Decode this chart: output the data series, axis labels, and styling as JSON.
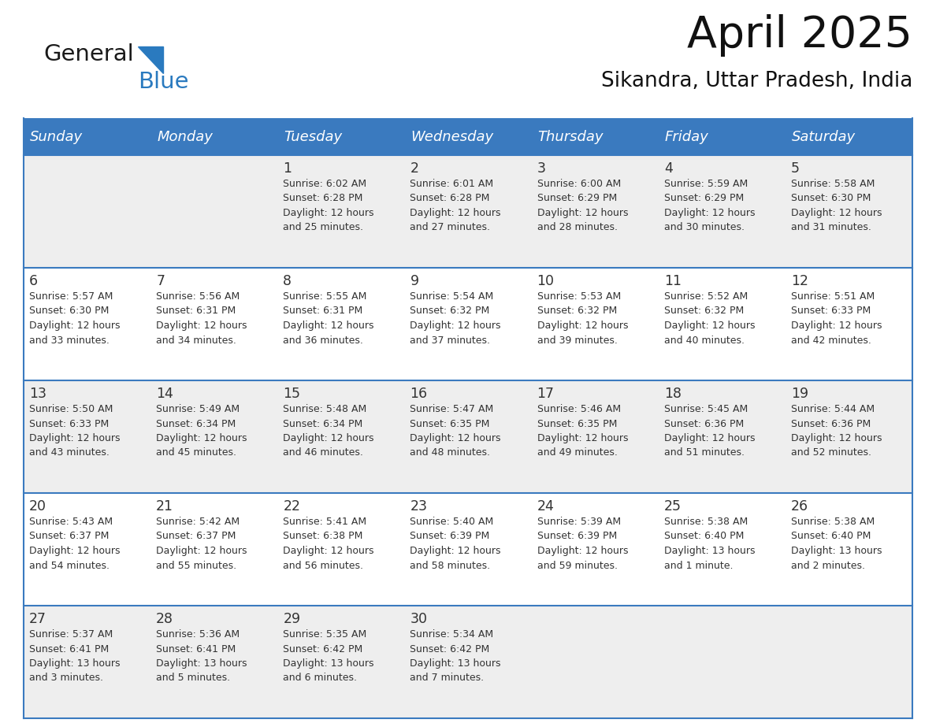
{
  "title": "April 2025",
  "subtitle": "Sikandra, Uttar Pradesh, India",
  "header_bg": "#3a7abf",
  "header_text": "#ffffff",
  "row_bg_odd": "#eeeeee",
  "row_bg_even": "#ffffff",
  "cell_text": "#333333",
  "border_color": "#3a7abf",
  "days_of_week": [
    "Sunday",
    "Monday",
    "Tuesday",
    "Wednesday",
    "Thursday",
    "Friday",
    "Saturday"
  ],
  "weeks": [
    [
      {
        "day": "",
        "info": ""
      },
      {
        "day": "",
        "info": ""
      },
      {
        "day": "1",
        "info": "Sunrise: 6:02 AM\nSunset: 6:28 PM\nDaylight: 12 hours\nand 25 minutes."
      },
      {
        "day": "2",
        "info": "Sunrise: 6:01 AM\nSunset: 6:28 PM\nDaylight: 12 hours\nand 27 minutes."
      },
      {
        "day": "3",
        "info": "Sunrise: 6:00 AM\nSunset: 6:29 PM\nDaylight: 12 hours\nand 28 minutes."
      },
      {
        "day": "4",
        "info": "Sunrise: 5:59 AM\nSunset: 6:29 PM\nDaylight: 12 hours\nand 30 minutes."
      },
      {
        "day": "5",
        "info": "Sunrise: 5:58 AM\nSunset: 6:30 PM\nDaylight: 12 hours\nand 31 minutes."
      }
    ],
    [
      {
        "day": "6",
        "info": "Sunrise: 5:57 AM\nSunset: 6:30 PM\nDaylight: 12 hours\nand 33 minutes."
      },
      {
        "day": "7",
        "info": "Sunrise: 5:56 AM\nSunset: 6:31 PM\nDaylight: 12 hours\nand 34 minutes."
      },
      {
        "day": "8",
        "info": "Sunrise: 5:55 AM\nSunset: 6:31 PM\nDaylight: 12 hours\nand 36 minutes."
      },
      {
        "day": "9",
        "info": "Sunrise: 5:54 AM\nSunset: 6:32 PM\nDaylight: 12 hours\nand 37 minutes."
      },
      {
        "day": "10",
        "info": "Sunrise: 5:53 AM\nSunset: 6:32 PM\nDaylight: 12 hours\nand 39 minutes."
      },
      {
        "day": "11",
        "info": "Sunrise: 5:52 AM\nSunset: 6:32 PM\nDaylight: 12 hours\nand 40 minutes."
      },
      {
        "day": "12",
        "info": "Sunrise: 5:51 AM\nSunset: 6:33 PM\nDaylight: 12 hours\nand 42 minutes."
      }
    ],
    [
      {
        "day": "13",
        "info": "Sunrise: 5:50 AM\nSunset: 6:33 PM\nDaylight: 12 hours\nand 43 minutes."
      },
      {
        "day": "14",
        "info": "Sunrise: 5:49 AM\nSunset: 6:34 PM\nDaylight: 12 hours\nand 45 minutes."
      },
      {
        "day": "15",
        "info": "Sunrise: 5:48 AM\nSunset: 6:34 PM\nDaylight: 12 hours\nand 46 minutes."
      },
      {
        "day": "16",
        "info": "Sunrise: 5:47 AM\nSunset: 6:35 PM\nDaylight: 12 hours\nand 48 minutes."
      },
      {
        "day": "17",
        "info": "Sunrise: 5:46 AM\nSunset: 6:35 PM\nDaylight: 12 hours\nand 49 minutes."
      },
      {
        "day": "18",
        "info": "Sunrise: 5:45 AM\nSunset: 6:36 PM\nDaylight: 12 hours\nand 51 minutes."
      },
      {
        "day": "19",
        "info": "Sunrise: 5:44 AM\nSunset: 6:36 PM\nDaylight: 12 hours\nand 52 minutes."
      }
    ],
    [
      {
        "day": "20",
        "info": "Sunrise: 5:43 AM\nSunset: 6:37 PM\nDaylight: 12 hours\nand 54 minutes."
      },
      {
        "day": "21",
        "info": "Sunrise: 5:42 AM\nSunset: 6:37 PM\nDaylight: 12 hours\nand 55 minutes."
      },
      {
        "day": "22",
        "info": "Sunrise: 5:41 AM\nSunset: 6:38 PM\nDaylight: 12 hours\nand 56 minutes."
      },
      {
        "day": "23",
        "info": "Sunrise: 5:40 AM\nSunset: 6:39 PM\nDaylight: 12 hours\nand 58 minutes."
      },
      {
        "day": "24",
        "info": "Sunrise: 5:39 AM\nSunset: 6:39 PM\nDaylight: 12 hours\nand 59 minutes."
      },
      {
        "day": "25",
        "info": "Sunrise: 5:38 AM\nSunset: 6:40 PM\nDaylight: 13 hours\nand 1 minute."
      },
      {
        "day": "26",
        "info": "Sunrise: 5:38 AM\nSunset: 6:40 PM\nDaylight: 13 hours\nand 2 minutes."
      }
    ],
    [
      {
        "day": "27",
        "info": "Sunrise: 5:37 AM\nSunset: 6:41 PM\nDaylight: 13 hours\nand 3 minutes."
      },
      {
        "day": "28",
        "info": "Sunrise: 5:36 AM\nSunset: 6:41 PM\nDaylight: 13 hours\nand 5 minutes."
      },
      {
        "day": "29",
        "info": "Sunrise: 5:35 AM\nSunset: 6:42 PM\nDaylight: 13 hours\nand 6 minutes."
      },
      {
        "day": "30",
        "info": "Sunrise: 5:34 AM\nSunset: 6:42 PM\nDaylight: 13 hours\nand 7 minutes."
      },
      {
        "day": "",
        "info": ""
      },
      {
        "day": "",
        "info": ""
      },
      {
        "day": "",
        "info": ""
      }
    ]
  ],
  "logo_text_general": "General",
  "logo_text_blue": "Blue",
  "logo_color_general": "#1a1a1a",
  "logo_color_blue": "#2a7abf",
  "logo_triangle_color": "#2a7abf",
  "fig_width": 11.88,
  "fig_height": 9.18,
  "dpi": 100
}
